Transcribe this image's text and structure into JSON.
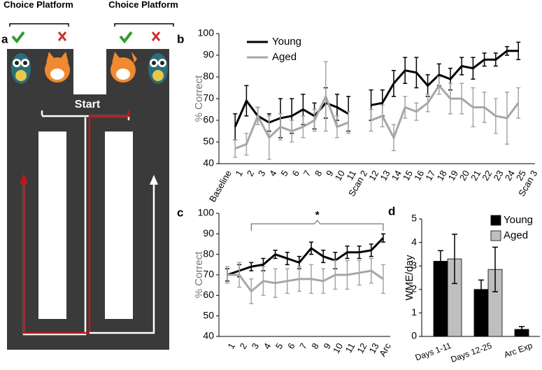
{
  "diagram": {
    "panel": "a",
    "platform_left": "Choice Platform",
    "platform_right": "Choice Platform",
    "start": "Start"
  },
  "chart_data": [
    {
      "type": "line",
      "panel": "b",
      "y_label": "% Correct",
      "legend": "upper left",
      "categories": [
        "Baseline",
        "1",
        "2",
        "3",
        "4",
        "5",
        "6",
        "7",
        "8",
        "9",
        "10",
        "11",
        "Scan 2",
        "12",
        "13",
        "14",
        "15",
        "16",
        "17",
        "18",
        "19",
        "20",
        "21",
        "22",
        "23",
        "24",
        "25",
        "Scan 3"
      ],
      "series": [
        {
          "name": "Young",
          "color": "#000000",
          "values": [
            null,
            57,
            69,
            62,
            59,
            61,
            62,
            65,
            62,
            68,
            66,
            63,
            null,
            67,
            68,
            77,
            83,
            82,
            76,
            81,
            79,
            85,
            84,
            88,
            88,
            92,
            92,
            null
          ],
          "errors": [
            null,
            6,
            7,
            4,
            4,
            9,
            8,
            7,
            6,
            7,
            6,
            8,
            null,
            7,
            6,
            6,
            6,
            7,
            5,
            5,
            5,
            4,
            5,
            3,
            3,
            2,
            4,
            null
          ]
        },
        {
          "name": "Aged",
          "color": "#a6a6a6",
          "values": [
            null,
            47,
            49,
            62,
            52,
            57,
            55,
            57,
            60,
            71,
            57,
            59,
            null,
            60,
            62,
            52,
            66,
            64,
            68,
            76,
            70,
            70,
            66,
            66,
            62,
            61,
            68,
            null
          ],
          "errors": [
            null,
            4,
            5,
            4,
            10,
            6,
            5,
            5,
            5,
            16,
            5,
            5,
            null,
            5,
            5,
            6,
            5,
            4,
            4,
            4,
            7,
            7,
            9,
            7,
            8,
            12,
            7,
            null
          ]
        }
      ],
      "ylim": [
        40,
        100
      ],
      "yticks": [
        40,
        50,
        60,
        70,
        80,
        90,
        100
      ]
    },
    {
      "type": "line",
      "panel": "c",
      "y_label": "% Correct",
      "annotation": "*",
      "categories": [
        "1",
        "2",
        "3",
        "4",
        "5",
        "6",
        "7",
        "8",
        "9",
        "10",
        "11",
        "12",
        "13",
        "Arc"
      ],
      "series": [
        {
          "name": "Young",
          "color": "#000000",
          "values": [
            70,
            72,
            74,
            75,
            80,
            78,
            76,
            83,
            79,
            77,
            81,
            81,
            82,
            88
          ],
          "errors": [
            3,
            3,
            2,
            3,
            2,
            3,
            3,
            3,
            3,
            4,
            3,
            3,
            3,
            2
          ]
        },
        {
          "name": "Aged",
          "color": "#a6a6a6",
          "values": [
            70,
            70,
            62,
            67,
            66,
            67,
            68,
            68,
            67,
            70,
            70,
            71,
            72,
            68
          ],
          "errors": [
            4,
            6,
            6,
            7,
            7,
            6,
            6,
            7,
            6,
            7,
            7,
            6,
            6,
            7
          ]
        }
      ],
      "ylim": [
        40,
        100
      ],
      "yticks": [
        40,
        50,
        60,
        70,
        80,
        90,
        100
      ]
    },
    {
      "type": "bar",
      "panel": "d",
      "y_label": "WME/day",
      "legend": "upper right",
      "categories": [
        "Days 1-11",
        "Days 12-25",
        "Arc Exp"
      ],
      "series": [
        {
          "name": "Young",
          "color": "#000000",
          "values": [
            3.2,
            2.0,
            0.3
          ],
          "errors": [
            0.45,
            0.4,
            0.12
          ]
        },
        {
          "name": "Aged",
          "color": "#bfbfbf",
          "values": [
            3.3,
            2.85,
            null
          ],
          "errors": [
            1.05,
            0.95,
            null
          ]
        }
      ],
      "ylim": [
        0,
        5
      ],
      "yticks": [
        0,
        1,
        2,
        3,
        4,
        5
      ]
    }
  ]
}
